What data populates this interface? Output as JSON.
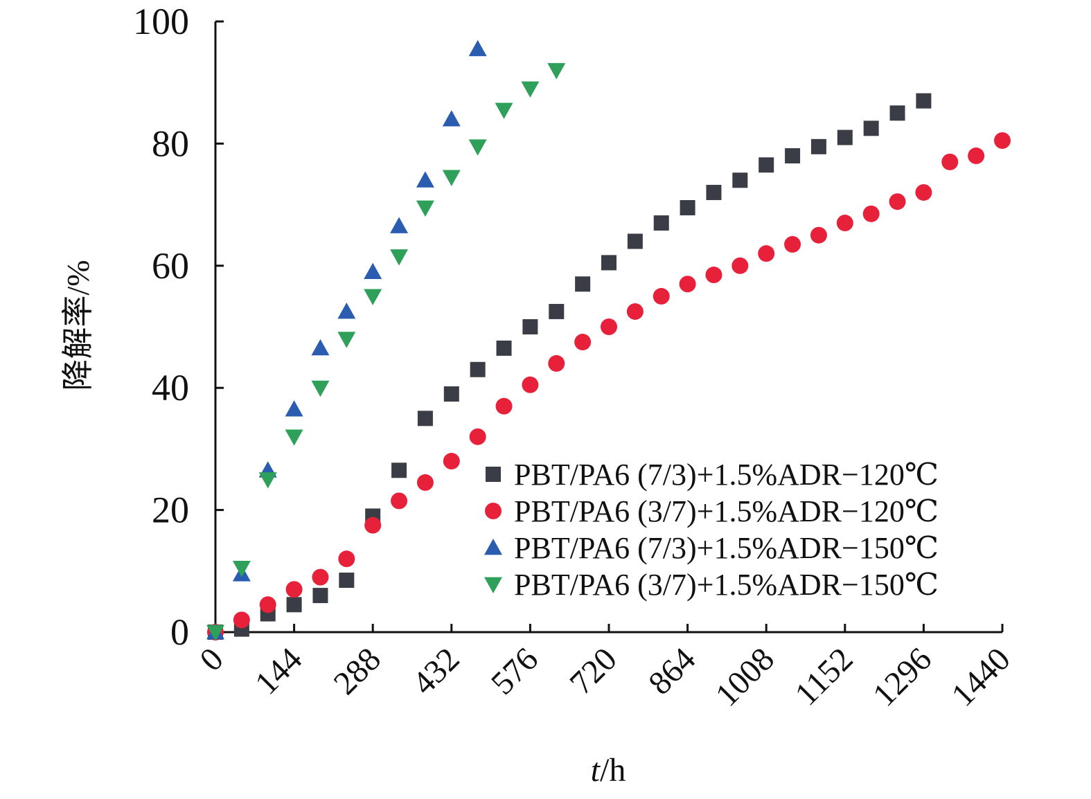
{
  "chart_data": {
    "type": "scatter",
    "xlabel": "t/h",
    "xlabel_italic_part": "t",
    "xlabel_rest": "/h",
    "ylabel": "降解率/%",
    "x_ticks": [
      0,
      144,
      288,
      432,
      576,
      720,
      864,
      1008,
      1152,
      1296,
      1440
    ],
    "y_ticks": [
      0,
      20,
      40,
      60,
      80,
      100
    ],
    "xlim": [
      0,
      1440
    ],
    "ylim": [
      0,
      100
    ],
    "legend_position": "center-right",
    "grid": false,
    "series": [
      {
        "name": "PBT/PA6 (7/3)+1.5%ADR−120℃",
        "marker": "square",
        "color": "#3a3d45",
        "x": [
          0,
          48,
          96,
          144,
          192,
          240,
          288,
          336,
          384,
          432,
          480,
          528,
          576,
          624,
          672,
          720,
          768,
          816,
          864,
          912,
          960,
          1008,
          1056,
          1104,
          1152,
          1200,
          1248,
          1296
        ],
        "y": [
          0,
          0.5,
          3,
          4.5,
          6,
          8.5,
          19,
          26.5,
          35,
          39,
          43,
          46.5,
          50,
          52.5,
          57,
          60.5,
          64,
          67,
          69.5,
          72,
          74,
          76.5,
          78,
          79.5,
          81,
          82.5,
          85,
          87
        ]
      },
      {
        "name": "PBT/PA6 (3/7)+1.5%ADR−120℃",
        "marker": "circle",
        "color": "#e8213b",
        "x": [
          0,
          48,
          96,
          144,
          192,
          240,
          288,
          336,
          384,
          432,
          480,
          528,
          576,
          624,
          672,
          720,
          768,
          816,
          864,
          912,
          960,
          1008,
          1056,
          1104,
          1152,
          1200,
          1248,
          1296,
          1344,
          1392,
          1440
        ],
        "y": [
          0,
          2,
          4.5,
          7,
          9,
          12,
          17.5,
          21.5,
          24.5,
          28,
          32,
          37,
          40.5,
          44,
          47.5,
          50,
          52.5,
          55,
          57,
          58.5,
          60,
          62,
          63.5,
          65,
          67,
          68.5,
          70.5,
          72,
          77,
          78,
          80.5
        ]
      },
      {
        "name": "PBT/PA6 (7/3)+1.5%ADR−150℃",
        "marker": "triangle-up",
        "color": "#2a5db0",
        "x": [
          0,
          48,
          96,
          144,
          192,
          240,
          288,
          336,
          384,
          432,
          480
        ],
        "y": [
          0,
          9.5,
          26.5,
          36.5,
          46.5,
          52.5,
          59,
          66.5,
          74,
          84,
          95.5
        ]
      },
      {
        "name": "PBT/PA6 (3/7)+1.5%ADR−150℃",
        "marker": "triangle-down",
        "color": "#2fa05a",
        "x": [
          0,
          48,
          96,
          144,
          192,
          240,
          288,
          336,
          384,
          432,
          480,
          528,
          576,
          624
        ],
        "y": [
          0,
          10.5,
          25,
          32,
          40,
          48,
          55,
          61.5,
          69.5,
          74.5,
          79.5,
          85.5,
          89,
          92
        ]
      }
    ]
  }
}
